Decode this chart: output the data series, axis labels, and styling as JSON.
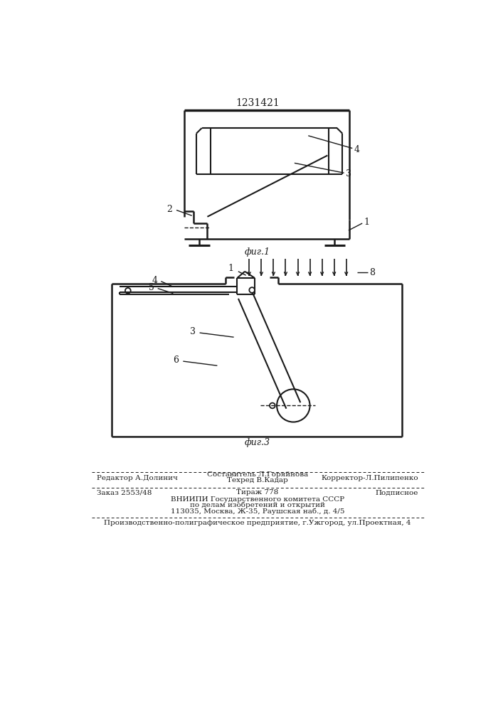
{
  "title": "1231421",
  "fig1_label": "фиг.1",
  "fig3_label": "фиг.3",
  "bg_color": "#ffffff",
  "line_color": "#1a1a1a",
  "footer_line1_left": "Редактор А.Долинич",
  "footer_line1_right": "Корректор-Л.Пилипенко",
  "footer_sestavitel": "Составитель Л.Горяйнова",
  "footer_tehred": "Техред В.Кадар",
  "footer_zakaz": "Заказ 2553/48",
  "footer_tirazh": "Тираж 778",
  "footer_podpisnoe": "Подписное",
  "footer_vniip": "ВНИИПИ Государственного комитета СССР",
  "footer_po_delam": "по делам изобретений и открытий",
  "footer_address": "113035, Москва, Ж-35, Раушская наб., д. 4/5",
  "footer_production": "Производственно-полиграфическое предприятие, г.Ужгород, ул.Проектная, 4"
}
